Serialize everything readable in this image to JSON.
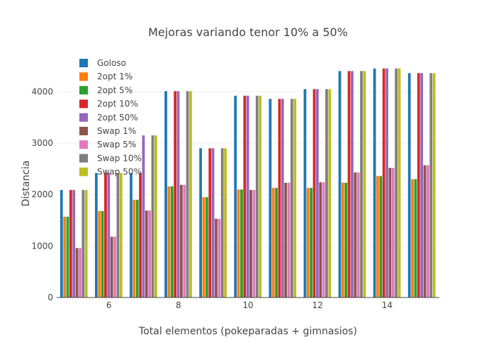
{
  "chart_data": {
    "type": "bar",
    "title": "Mejoras variando tenor 10% a 50%",
    "xlabel": "Total elementos (pokeparadas + gimnasios)",
    "ylabel": "Distancia",
    "x": [
      5,
      6,
      7,
      8,
      9,
      10,
      11,
      12,
      13,
      14,
      15
    ],
    "xlim": [
      4.5,
      15.5
    ],
    "ylim": [
      0,
      4680
    ],
    "x_ticks": [
      6,
      8,
      10,
      12,
      14
    ],
    "y_ticks": [
      0,
      1000,
      2000,
      3000,
      4000
    ],
    "grid": "horizontal",
    "legend_position": "top-left",
    "series": [
      {
        "name": "Goloso",
        "color": "#1f77b4",
        "values": [
          2090,
          2420,
          2420,
          4010,
          2900,
          3920,
          3860,
          4050,
          4400,
          4450,
          4360
        ]
      },
      {
        "name": "2opt 1%",
        "color": "#ff7f0e",
        "values": [
          1570,
          1680,
          1900,
          2160,
          1950,
          2100,
          2130,
          2130,
          2230,
          2360,
          2300
        ]
      },
      {
        "name": "2opt 5%",
        "color": "#2ca02c",
        "values": [
          1570,
          1680,
          1900,
          2160,
          1950,
          2100,
          2130,
          2130,
          2230,
          2360,
          2300
        ]
      },
      {
        "name": "2opt 10%",
        "color": "#d62728",
        "values": [
          2090,
          2420,
          2420,
          4010,
          2900,
          3920,
          3860,
          4050,
          4400,
          4450,
          4360
        ]
      },
      {
        "name": "2opt 50%",
        "color": "#9467bd",
        "values": [
          2090,
          2420,
          3150,
          4010,
          2900,
          3920,
          3860,
          4050,
          4400,
          4450,
          4360
        ]
      },
      {
        "name": "Swap 1%",
        "color": "#8c564b",
        "values": [
          960,
          1180,
          1690,
          2190,
          1530,
          2090,
          2230,
          2240,
          2430,
          2520,
          2570
        ]
      },
      {
        "name": "Swap 5%",
        "color": "#e377c2",
        "values": [
          960,
          1180,
          1690,
          2190,
          1530,
          2090,
          2230,
          2240,
          2430,
          2520,
          2570
        ]
      },
      {
        "name": "Swap 10%",
        "color": "#7f7f7f",
        "values": [
          2090,
          2420,
          3150,
          4010,
          2900,
          3920,
          3860,
          4050,
          4400,
          4450,
          4360
        ]
      },
      {
        "name": "Swap 50%",
        "color": "#bcbd22",
        "values": [
          2090,
          2420,
          3150,
          4010,
          2900,
          3920,
          3860,
          4050,
          4400,
          4450,
          4360
        ]
      }
    ]
  }
}
